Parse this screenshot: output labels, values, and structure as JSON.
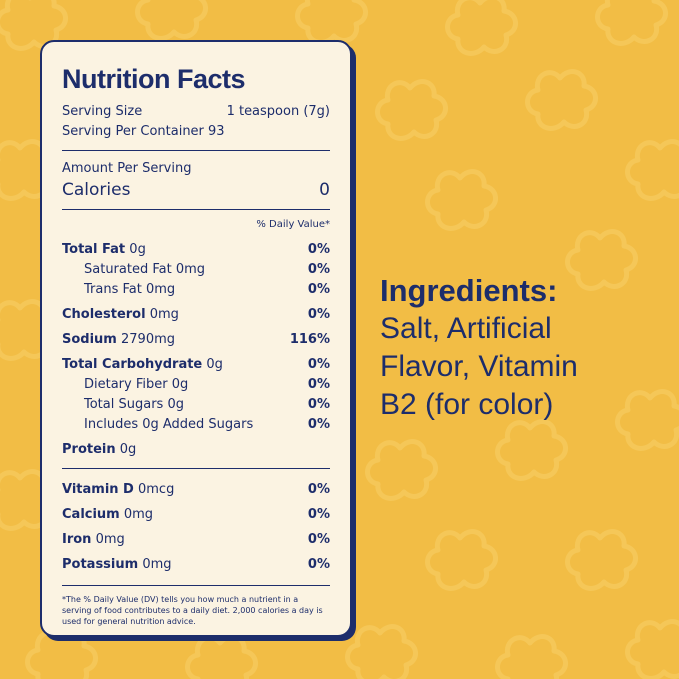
{
  "colors": {
    "background": "#f2bd45",
    "pattern": "#f5c758",
    "panel": "#fbf3e2",
    "ink": "#1d2d6b"
  },
  "nutrition": {
    "title": "Nutrition Facts",
    "serving_size_label": "Serving Size",
    "serving_size_value": "1 teaspoon (7g)",
    "servings_per_container": "Serving Per Container 93",
    "amount_per_serving": "Amount Per Serving",
    "calories_label": "Calories",
    "calories_value": "0",
    "dv_header": "% Daily Value*",
    "rows": [
      {
        "name": "Total Fat",
        "amount": "0g",
        "dv": "0%"
      },
      {
        "name": "Saturated Fat",
        "amount": "0mg",
        "dv": "0%"
      },
      {
        "name": "Trans Fat",
        "amount": "0mg",
        "dv": "0%"
      },
      {
        "name": "Cholesterol",
        "amount": "0mg",
        "dv": "0%"
      },
      {
        "name": "Sodium",
        "amount": "2790mg",
        "dv": "116%"
      },
      {
        "name": "Total Carbohydrate",
        "amount": "0g",
        "dv": "0%"
      },
      {
        "name": "Dietary Fiber",
        "amount": "0g",
        "dv": "0%"
      },
      {
        "name": "Total Sugars",
        "amount": "0g",
        "dv": "0%"
      },
      {
        "name": "Includes 0g Added Sugars",
        "amount": "",
        "dv": "0%"
      },
      {
        "name": "Protein",
        "amount": "0g",
        "dv": ""
      }
    ],
    "vitamins": [
      {
        "name": "Vitamin D",
        "amount": "0mcg",
        "dv": "0%"
      },
      {
        "name": "Calcium",
        "amount": "0mg",
        "dv": "0%"
      },
      {
        "name": "Iron",
        "amount": "0mg",
        "dv": "0%"
      },
      {
        "name": "Potassium",
        "amount": "0mg",
        "dv": "0%"
      }
    ],
    "footnote": "*The % Daily Value (DV) tells you how much a nutrient in a serving of food contributes to a daily diet. 2,000 calories a day is used for general nutrition advice."
  },
  "ingredients": {
    "title": "Ingredients:",
    "text": "Salt, Artificial Flavor, Vitamin B2 (for color)"
  }
}
